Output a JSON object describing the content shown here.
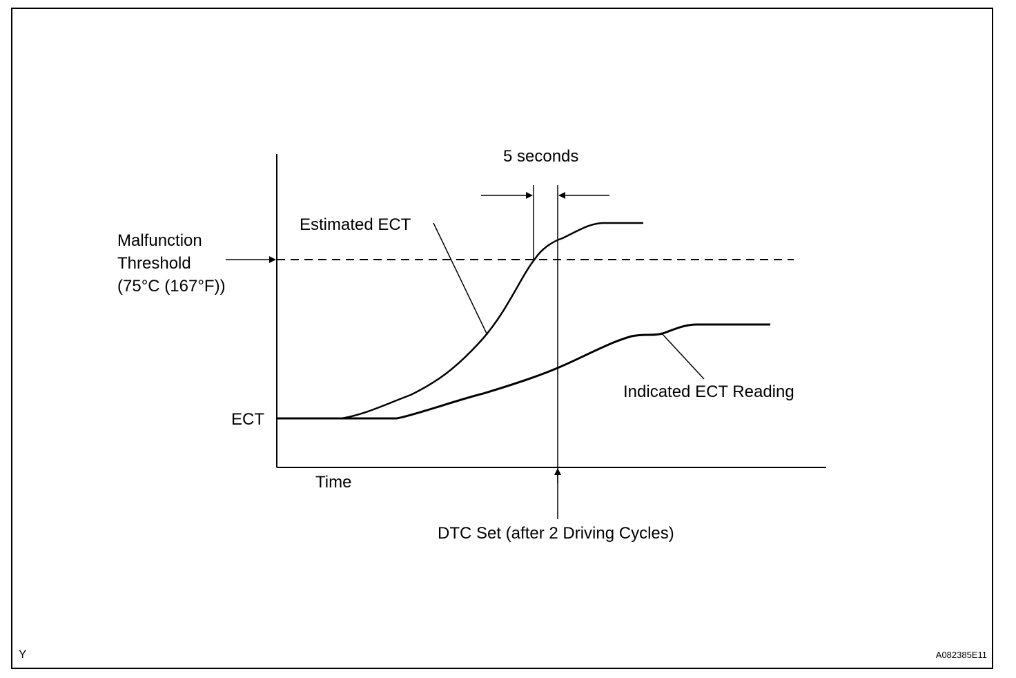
{
  "labels": {
    "five_seconds": "5 seconds",
    "estimated_ect": "Estimated ECT",
    "threshold_line1": "Malfunction",
    "threshold_line2": "Threshold",
    "threshold_line3": "(75°C (167°F))",
    "ect": "ECT",
    "indicated_ect": "Indicated ECT Reading",
    "time": "Time",
    "dtc_set": "DTC Set (after 2 Driving Cycles)"
  },
  "footer": {
    "left_code": "Y",
    "figure_id": "A082385E11"
  }
}
